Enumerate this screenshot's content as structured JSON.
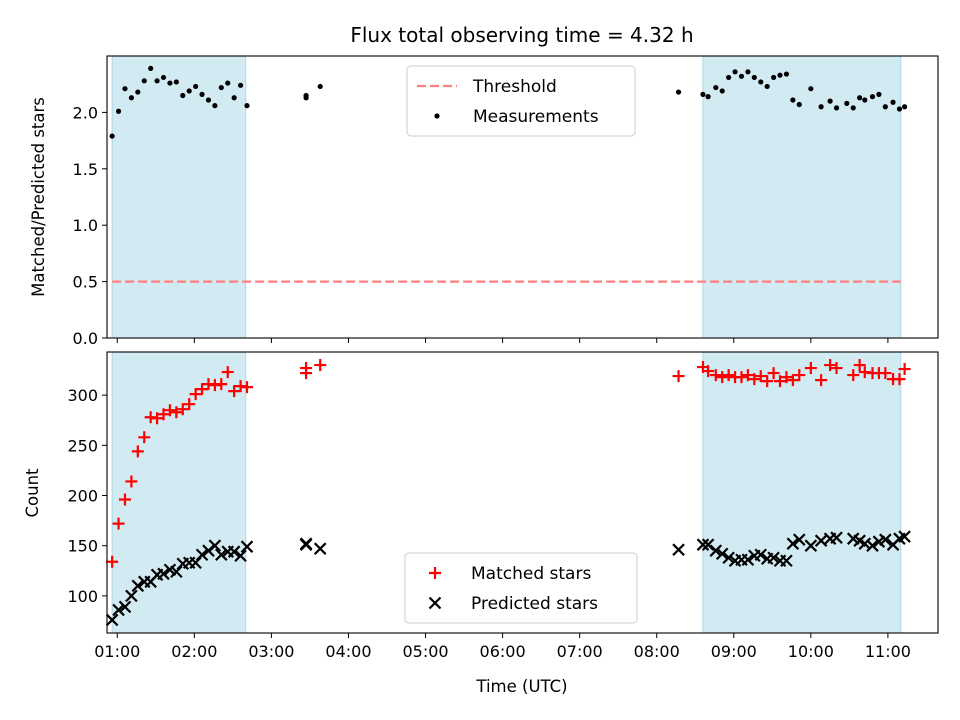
{
  "colors": {
    "background": "#ffffff",
    "band": "#add8e6",
    "threshold": "#ff7f7f",
    "measurement": "#000000",
    "matched": "#ff0000",
    "predicted": "#000000"
  },
  "chart_data": [
    {
      "type": "scatter",
      "title": "Flux total observing time = 4.32 h",
      "xlabel": "",
      "ylabel": "Matched/Predicted stars",
      "xlim": [
        "00:52",
        "11:39"
      ],
      "ylim": [
        0,
        2.5
      ],
      "yticks": [
        "0.0",
        "0.5",
        "1.0",
        "1.5",
        "2.0"
      ],
      "xticks": [
        "01:00",
        "02:00",
        "03:00",
        "04:00",
        "05:00",
        "06:00",
        "07:00",
        "08:00",
        "09:00",
        "10:00",
        "11:00"
      ],
      "show_xtick_labels": false,
      "shaded_bands": [
        {
          "start": "00:56",
          "end": "02:40"
        },
        {
          "start": "08:36",
          "end": "11:10"
        }
      ],
      "legend": {
        "position": "top-center",
        "entries": [
          "Threshold",
          "Measurements"
        ]
      },
      "threshold": {
        "name": "Threshold",
        "value": 0.5,
        "start": "00:56",
        "end": "11:10"
      },
      "series": [
        {
          "name": "Measurements",
          "marker": "dot",
          "points": [
            [
              "00:56",
              1.79
            ],
            [
              "01:01",
              2.01
            ],
            [
              "01:06",
              2.21
            ],
            [
              "01:11",
              2.13
            ],
            [
              "01:16",
              2.18
            ],
            [
              "01:21",
              2.28
            ],
            [
              "01:26",
              2.39
            ],
            [
              "01:31",
              2.28
            ],
            [
              "01:36",
              2.31
            ],
            [
              "01:41",
              2.26
            ],
            [
              "01:46",
              2.27
            ],
            [
              "01:51",
              2.15
            ],
            [
              "01:56",
              2.19
            ],
            [
              "02:01",
              2.23
            ],
            [
              "02:06",
              2.16
            ],
            [
              "02:11",
              2.11
            ],
            [
              "02:16",
              2.06
            ],
            [
              "02:21",
              2.22
            ],
            [
              "02:26",
              2.26
            ],
            [
              "02:31",
              2.13
            ],
            [
              "02:36",
              2.24
            ],
            [
              "02:41",
              2.06
            ],
            [
              "03:27",
              2.13
            ],
            [
              "03:27",
              2.15
            ],
            [
              "03:38",
              2.23
            ],
            [
              "08:17",
              2.18
            ],
            [
              "08:36",
              2.16
            ],
            [
              "08:40",
              2.14
            ],
            [
              "08:46",
              2.22
            ],
            [
              "08:51",
              2.19
            ],
            [
              "08:56",
              2.31
            ],
            [
              "09:01",
              2.36
            ],
            [
              "09:06",
              2.32
            ],
            [
              "09:11",
              2.36
            ],
            [
              "09:16",
              2.31
            ],
            [
              "09:21",
              2.27
            ],
            [
              "09:26",
              2.23
            ],
            [
              "09:31",
              2.31
            ],
            [
              "09:36",
              2.33
            ],
            [
              "09:41",
              2.34
            ],
            [
              "09:46",
              2.11
            ],
            [
              "09:51",
              2.07
            ],
            [
              "10:00",
              2.21
            ],
            [
              "10:08",
              2.05
            ],
            [
              "10:15",
              2.1
            ],
            [
              "10:20",
              2.04
            ],
            [
              "10:28",
              2.08
            ],
            [
              "10:33",
              2.04
            ],
            [
              "10:38",
              2.13
            ],
            [
              "10:42",
              2.11
            ],
            [
              "10:48",
              2.14
            ],
            [
              "10:53",
              2.16
            ],
            [
              "10:58",
              2.05
            ],
            [
              "11:04",
              2.09
            ],
            [
              "11:09",
              2.03
            ],
            [
              "11:13",
              2.05
            ]
          ]
        }
      ]
    },
    {
      "type": "scatter",
      "title": "",
      "xlabel": "Time (UTC)",
      "ylabel": "Count",
      "xlim": [
        "00:52",
        "11:39"
      ],
      "ylim": [
        63,
        343
      ],
      "yticks": [
        "100",
        "150",
        "200",
        "250",
        "300"
      ],
      "xticks": [
        "01:00",
        "02:00",
        "03:00",
        "04:00",
        "05:00",
        "06:00",
        "07:00",
        "08:00",
        "09:00",
        "10:00",
        "11:00"
      ],
      "show_xtick_labels": true,
      "shaded_bands": [
        {
          "start": "00:56",
          "end": "02:40"
        },
        {
          "start": "08:36",
          "end": "11:10"
        }
      ],
      "legend": {
        "position": "bottom-center",
        "entries": [
          "Matched stars",
          "Predicted stars"
        ]
      },
      "series": [
        {
          "name": "Matched stars",
          "marker": "plus",
          "points": [
            [
              "00:56",
              134
            ],
            [
              "01:01",
              172
            ],
            [
              "01:06",
              196
            ],
            [
              "01:11",
              214
            ],
            [
              "01:16",
              244
            ],
            [
              "01:21",
              258
            ],
            [
              "01:26",
              278
            ],
            [
              "01:31",
              277
            ],
            [
              "01:36",
              281
            ],
            [
              "01:41",
              285
            ],
            [
              "01:46",
              283
            ],
            [
              "01:51",
              286
            ],
            [
              "01:56",
              291
            ],
            [
              "02:01",
              301
            ],
            [
              "02:06",
              306
            ],
            [
              "02:11",
              311
            ],
            [
              "02:16",
              310
            ],
            [
              "02:21",
              311
            ],
            [
              "02:26",
              323
            ],
            [
              "02:31",
              304
            ],
            [
              "02:36",
              309
            ],
            [
              "02:41",
              308
            ],
            [
              "03:27",
              322
            ],
            [
              "03:27",
              327
            ],
            [
              "03:38",
              330
            ],
            [
              "08:17",
              319
            ],
            [
              "08:36",
              328
            ],
            [
              "08:40",
              324
            ],
            [
              "08:46",
              320
            ],
            [
              "08:51",
              318
            ],
            [
              "08:56",
              320
            ],
            [
              "09:01",
              318
            ],
            [
              "09:06",
              318
            ],
            [
              "09:11",
              320
            ],
            [
              "09:16",
              316
            ],
            [
              "09:21",
              319
            ],
            [
              "09:26",
              314
            ],
            [
              "09:31",
              322
            ],
            [
              "09:36",
              314
            ],
            [
              "09:41",
              318
            ],
            [
              "09:46",
              315
            ],
            [
              "09:51",
              320
            ],
            [
              "10:00",
              327
            ],
            [
              "10:08",
              315
            ],
            [
              "10:15",
              330
            ],
            [
              "10:20",
              327
            ],
            [
              "10:33",
              320
            ],
            [
              "10:38",
              330
            ],
            [
              "10:42",
              323
            ],
            [
              "10:48",
              322
            ],
            [
              "10:53",
              322
            ],
            [
              "10:58",
              322
            ],
            [
              "11:04",
              316
            ],
            [
              "11:09",
              316
            ],
            [
              "11:13",
              326
            ]
          ]
        },
        {
          "name": "Predicted stars",
          "marker": "cross",
          "points": [
            [
              "00:56",
              76
            ],
            [
              "01:01",
              86
            ],
            [
              "01:06",
              89
            ],
            [
              "01:11",
              100
            ],
            [
              "01:16",
              110
            ],
            [
              "01:21",
              114
            ],
            [
              "01:26",
              114
            ],
            [
              "01:31",
              121
            ],
            [
              "01:36",
              122
            ],
            [
              "01:41",
              126
            ],
            [
              "01:46",
              124
            ],
            [
              "01:51",
              132
            ],
            [
              "01:56",
              133
            ],
            [
              "02:01",
              133
            ],
            [
              "02:06",
              141
            ],
            [
              "02:11",
              145
            ],
            [
              "02:16",
              150
            ],
            [
              "02:21",
              141
            ],
            [
              "02:26",
              144
            ],
            [
              "02:31",
              144
            ],
            [
              "02:36",
              140
            ],
            [
              "02:41",
              149
            ],
            [
              "03:27",
              152
            ],
            [
              "03:27",
              151
            ],
            [
              "03:38",
              147
            ],
            [
              "08:17",
              146
            ],
            [
              "08:36",
              151
            ],
            [
              "08:40",
              151
            ],
            [
              "08:46",
              145
            ],
            [
              "08:51",
              142
            ],
            [
              "08:56",
              138
            ],
            [
              "09:01",
              135
            ],
            [
              "09:06",
              136
            ],
            [
              "09:11",
              136
            ],
            [
              "09:16",
              140
            ],
            [
              "09:21",
              141
            ],
            [
              "09:26",
              137
            ],
            [
              "09:31",
              138
            ],
            [
              "09:36",
              135
            ],
            [
              "09:41",
              135
            ],
            [
              "09:46",
              152
            ],
            [
              "09:51",
              156
            ],
            [
              "10:00",
              150
            ],
            [
              "10:08",
              155
            ],
            [
              "10:15",
              157
            ],
            [
              "10:20",
              158
            ],
            [
              "10:33",
              157
            ],
            [
              "10:38",
              155
            ],
            [
              "10:42",
              152
            ],
            [
              "10:48",
              150
            ],
            [
              "10:53",
              154
            ],
            [
              "10:58",
              156
            ],
            [
              "11:04",
              151
            ],
            [
              "11:09",
              157
            ],
            [
              "11:13",
              159
            ]
          ]
        }
      ]
    }
  ]
}
